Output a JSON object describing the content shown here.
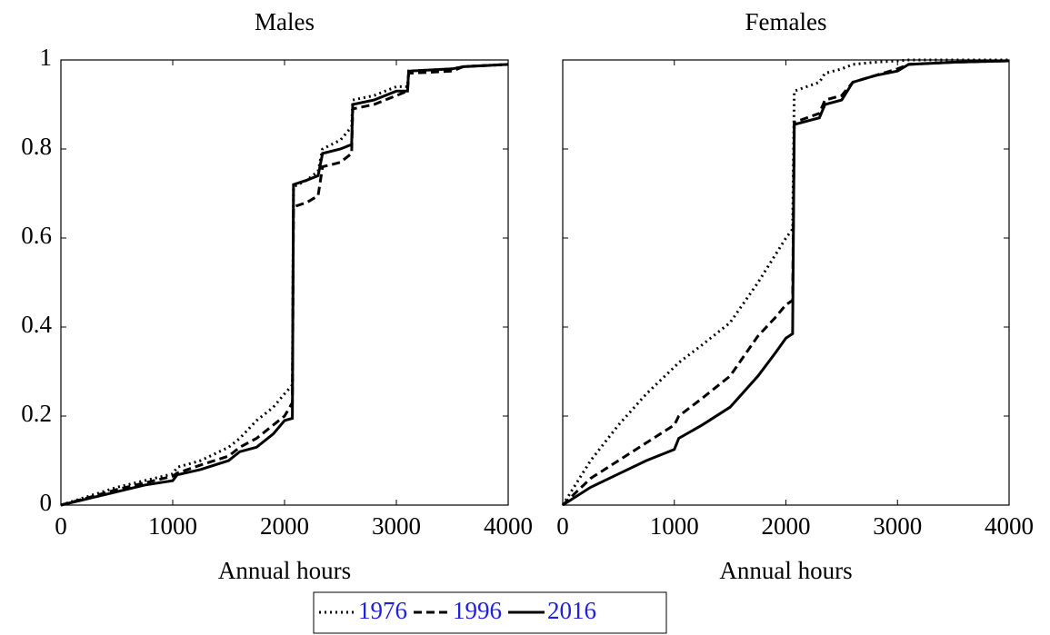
{
  "chart_data": [
    {
      "type": "line",
      "title": "Males",
      "xlabel": "Annual hours",
      "x": [
        0,
        250,
        500,
        750,
        1000,
        1040,
        1250,
        1500,
        1600,
        1750,
        1900,
        2000,
        2070,
        2080,
        2200,
        2300,
        2340,
        2500,
        2600,
        2610,
        2800,
        3000,
        3100,
        3110,
        3500,
        3600,
        4000
      ],
      "series": [
        {
          "name": "1976",
          "color": "#000000",
          "dash": "dotted",
          "values": [
            0,
            0.02,
            0.04,
            0.055,
            0.07,
            0.085,
            0.1,
            0.13,
            0.15,
            0.19,
            0.22,
            0.25,
            0.27,
            0.715,
            0.73,
            0.75,
            0.8,
            0.82,
            0.85,
            0.91,
            0.92,
            0.94,
            0.94,
            0.975,
            0.98,
            0.985,
            0.99
          ]
        },
        {
          "name": "1996",
          "color": "#000000",
          "dash": "dashed",
          "values": [
            0,
            0.017,
            0.035,
            0.05,
            0.065,
            0.072,
            0.09,
            0.11,
            0.13,
            0.15,
            0.18,
            0.2,
            0.23,
            0.67,
            0.68,
            0.695,
            0.76,
            0.77,
            0.79,
            0.89,
            0.9,
            0.92,
            0.93,
            0.97,
            0.975,
            0.985,
            0.99
          ]
        },
        {
          "name": "2016",
          "color": "#000000",
          "dash": "solid",
          "values": [
            0,
            0.015,
            0.03,
            0.045,
            0.055,
            0.068,
            0.08,
            0.1,
            0.12,
            0.13,
            0.16,
            0.19,
            0.195,
            0.72,
            0.73,
            0.74,
            0.79,
            0.8,
            0.81,
            0.9,
            0.91,
            0.93,
            0.93,
            0.975,
            0.98,
            0.985,
            0.99
          ]
        }
      ],
      "xlim": [
        0,
        4000
      ],
      "xticks": [
        0,
        1000,
        2000,
        3000,
        4000
      ],
      "ylim": [
        0,
        1
      ],
      "yticks": [
        0,
        0.2,
        0.4,
        0.6,
        0.8,
        1
      ],
      "yticklabels": true
    },
    {
      "type": "line",
      "title": "Females",
      "xlabel": "Annual hours",
      "x": [
        0,
        250,
        500,
        750,
        1000,
        1040,
        1250,
        1500,
        1750,
        1900,
        2000,
        2060,
        2075,
        2300,
        2350,
        2500,
        2600,
        2800,
        3000,
        3100,
        3500,
        4000
      ],
      "series": [
        {
          "name": "1976",
          "color": "#000000",
          "dash": "dotted",
          "values": [
            0,
            0.1,
            0.18,
            0.25,
            0.31,
            0.32,
            0.36,
            0.41,
            0.5,
            0.56,
            0.6,
            0.62,
            0.93,
            0.95,
            0.97,
            0.98,
            0.99,
            0.995,
            0.998,
            1,
            1,
            1
          ]
        },
        {
          "name": "1996",
          "color": "#000000",
          "dash": "dashed",
          "values": [
            0,
            0.06,
            0.1,
            0.14,
            0.18,
            0.2,
            0.24,
            0.29,
            0.38,
            0.42,
            0.45,
            0.46,
            0.86,
            0.88,
            0.91,
            0.92,
            0.95,
            0.965,
            0.98,
            0.99,
            0.995,
            0.998
          ]
        },
        {
          "name": "2016",
          "color": "#000000",
          "dash": "solid",
          "values": [
            0,
            0.04,
            0.07,
            0.1,
            0.125,
            0.15,
            0.18,
            0.22,
            0.29,
            0.34,
            0.375,
            0.385,
            0.855,
            0.87,
            0.9,
            0.91,
            0.95,
            0.965,
            0.975,
            0.99,
            0.995,
            0.998
          ]
        }
      ],
      "xlim": [
        0,
        4000
      ],
      "xticks": [
        0,
        1000,
        2000,
        3000,
        4000
      ],
      "ylim": [
        0,
        1
      ],
      "yticks": [
        0,
        0.2,
        0.4,
        0.6,
        0.8,
        1
      ],
      "yticklabels": false
    }
  ]
}
